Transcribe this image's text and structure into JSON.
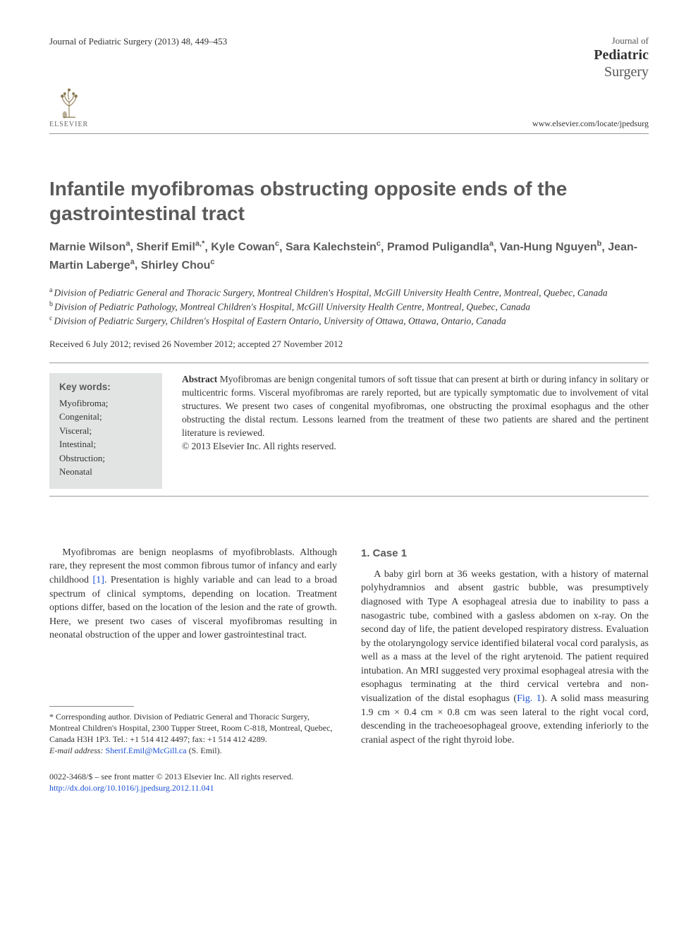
{
  "header": {
    "citation": "Journal of Pediatric Surgery (2013) 48, 449–453",
    "journal_brand": {
      "line1": "Journal of",
      "line2": "Pediatric",
      "line3": "Surgery"
    },
    "elsevier_label": "ELSEVIER",
    "journal_url": "www.elsevier.com/locate/jpedsurg"
  },
  "article": {
    "title": "Infantile myofibromas obstructing opposite ends of the gastrointestinal tract",
    "authors_html_parts": [
      {
        "name": "Marnie Wilson",
        "sup": "a"
      },
      {
        "name": "Sherif Emil",
        "sup": "a,*"
      },
      {
        "name": "Kyle Cowan",
        "sup": "c"
      },
      {
        "name": "Sara Kalechstein",
        "sup": "c"
      },
      {
        "name": "Pramod Puligandla",
        "sup": "a"
      },
      {
        "name": "Van-Hung Nguyen",
        "sup": "b"
      },
      {
        "name": "Jean-Martin Laberge",
        "sup": "a"
      },
      {
        "name": "Shirley Chou",
        "sup": "c"
      }
    ],
    "affiliations": [
      {
        "sup": "a",
        "text": "Division of Pediatric General and Thoracic Surgery, Montreal Children's Hospital, McGill University Health Centre, Montreal, Quebec, Canada"
      },
      {
        "sup": "b",
        "text": "Division of Pediatric Pathology, Montreal Children's Hospital, McGill University Health Centre, Montreal, Quebec, Canada"
      },
      {
        "sup": "c",
        "text": "Division of Pediatric Surgery, Children's Hospital of Eastern Ontario, University of Ottawa, Ottawa, Ontario, Canada"
      }
    ],
    "dates": "Received 6 July 2012; revised 26 November 2012; accepted 27 November 2012",
    "keywords_title": "Key words:",
    "keywords": [
      "Myofibroma;",
      "Congenital;",
      "Visceral;",
      "Intestinal;",
      "Obstruction;",
      "Neonatal"
    ],
    "abstract_label": "Abstract",
    "abstract_text": "Myofibromas are benign congenital tumors of soft tissue that can present at birth or during infancy in solitary or multicentric forms. Visceral myofibromas are rarely reported, but are typically symptomatic due to involvement of vital structures. We present two cases of congenital myofibromas, one obstructing the proximal esophagus and the other obstructing the distal rectum. Lessons learned from the treatment of these two patients are shared and the pertinent literature is reviewed.",
    "copyright_line": "© 2013 Elsevier Inc. All rights reserved."
  },
  "body": {
    "intro_pre": "Myofibromas are benign neoplasms of myofibroblasts. Although rare, they represent the most common fibrous tumor of infancy and early childhood ",
    "intro_ref": "[1]",
    "intro_post": ". Presentation is highly variable and can lead to a broad spectrum of clinical symptoms, depending on location. Treatment options differ, based on the location of the lesion and the rate of growth. Here, we present two cases of visceral myofibromas resulting in neonatal obstruction of the upper and lower gastrointestinal tract.",
    "section1_heading": "1. Case 1",
    "case1_pre": "A baby girl born at 36 weeks gestation, with a history of maternal polyhydramnios and absent gastric bubble, was presumptively diagnosed with Type A esophageal atresia due to inability to pass a nasogastric tube, combined with a gasless abdomen on x-ray. On the second day of life, the patient developed respiratory distress. Evaluation by the otolaryngology service identified bilateral vocal cord paralysis, as well as a mass at the level of the right arytenoid. The patient required intubation. An MRI suggested very proximal esophageal atresia with the esophagus terminating at the third cervical vertebra and non-visualization of the distal esophagus (",
    "case1_fig": "Fig. 1",
    "case1_post": "). A solid mass measuring 1.9 cm × 0.4 cm × 0.8 cm was seen lateral to the right vocal cord, descending in the tracheoesophageal groove, extending inferiorly to the cranial aspect of the right thyroid lobe."
  },
  "footnotes": {
    "corresponding": "* Corresponding author. Division of Pediatric General and Thoracic Surgery, Montreal Children's Hospital, 2300 Tupper Street, Room C-818, Montreal, Quebec, Canada H3H 1P3. Tel.: +1 514 412 4497; fax: +1 514 412 4289.",
    "email_label": "E-mail address:",
    "email": "Sherif.Emil@McGill.ca",
    "email_suffix": "(S. Emil)."
  },
  "footer": {
    "line1": "0022-3468/$ – see front matter © 2013 Elsevier Inc. All rights reserved.",
    "doi": "http://dx.doi.org/10.1016/j.jpedsurg.2012.11.041"
  },
  "colors": {
    "heading_gray": "#5a5a5a",
    "link_blue": "#1a4fd6",
    "keyword_bg": "#e1e4e3",
    "rule": "#999999"
  }
}
